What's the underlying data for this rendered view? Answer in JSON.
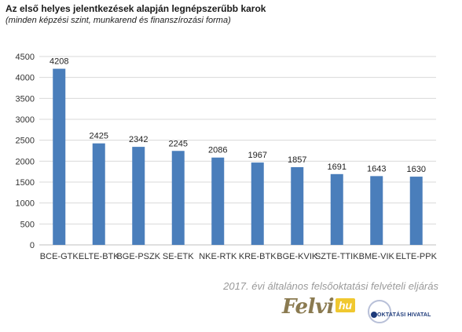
{
  "title": "Az első helyes jelentkezések alapján legnépszerűbb karok",
  "subtitle": "(minden képzési szint, munkarend és finanszírozási forma)",
  "footer": "2017. évi általános felsőoktatási felvételi eljárás",
  "logos": {
    "felvi_text": "Felvi",
    "felvi_suffix": "hu",
    "oh_text": "OKTATÁSI HIVATAL"
  },
  "colors": {
    "bar": "#4a7ebb",
    "grid": "#d9d9d9",
    "axis_text": "#333333"
  },
  "chart_data": {
    "type": "bar",
    "title": "Az első helyes jelentkezések alapján legnépszerűbb karok",
    "subtitle": "(minden képzési szint, munkarend és finanszírozási forma)",
    "categories": [
      "BCE-GTK",
      "ELTE-BTK",
      "BGE-PSZK",
      "SE-ETK",
      "NKE-RTK",
      "KRE-BTK",
      "BGE-KVIK",
      "SZTE-TTIK",
      "BME-VIK",
      "ELTE-PPK"
    ],
    "values": [
      4208,
      2425,
      2342,
      2245,
      2086,
      1967,
      1857,
      1691,
      1643,
      1630
    ],
    "yticks": [
      0,
      500,
      1000,
      1500,
      2000,
      2500,
      3000,
      3500,
      4000,
      4500
    ],
    "ylim": [
      0,
      4500
    ],
    "grid": true,
    "legend": "none",
    "data_labels": true
  }
}
